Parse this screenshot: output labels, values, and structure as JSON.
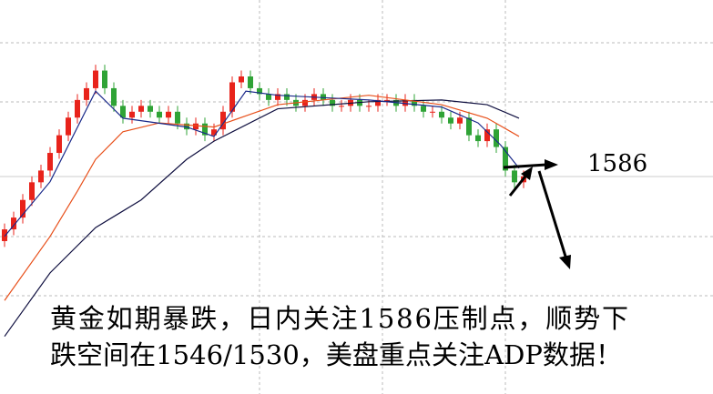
{
  "chart_data": {
    "type": "candlestick",
    "open": [
      1573,
      1575,
      1577,
      1580,
      1583,
      1585,
      1588,
      1591,
      1594,
      1597,
      1599,
      1602,
      1599,
      1596,
      1594,
      1595,
      1596,
      1595,
      1594,
      1595,
      1593,
      1592,
      1593,
      1591,
      1592,
      1595,
      1600,
      1601,
      1599,
      1598,
      1597,
      1598,
      1597,
      1596,
      1597,
      1598,
      1597,
      1596,
      1596,
      1597,
      1596,
      1596,
      1597,
      1597,
      1596,
      1597,
      1596,
      1595,
      1595,
      1594,
      1593,
      1594,
      1591,
      1590,
      1592,
      1589,
      1585,
      1583
    ],
    "high": [
      1576,
      1578,
      1581,
      1584,
      1586,
      1589,
      1592,
      1595,
      1598,
      1600,
      1603,
      1603,
      1600,
      1597,
      1596,
      1597,
      1597,
      1596,
      1596,
      1596,
      1594,
      1594,
      1594,
      1593,
      1596,
      1601,
      1602,
      1602,
      1600,
      1599,
      1599,
      1599,
      1598,
      1598,
      1599,
      1599,
      1598,
      1597,
      1598,
      1598,
      1597,
      1598,
      1598,
      1598,
      1598,
      1598,
      1597,
      1596,
      1596,
      1595,
      1595,
      1595,
      1592,
      1593,
      1593,
      1590,
      1586,
      1585
    ],
    "low": [
      1572,
      1574,
      1576,
      1579,
      1582,
      1584,
      1587,
      1590,
      1593,
      1596,
      1598,
      1598,
      1595,
      1593,
      1593,
      1594,
      1594,
      1593,
      1593,
      1592,
      1591,
      1591,
      1590,
      1590,
      1591,
      1594,
      1599,
      1598,
      1597,
      1596,
      1596,
      1596,
      1595,
      1595,
      1596,
      1596,
      1595,
      1595,
      1595,
      1595,
      1595,
      1595,
      1596,
      1595,
      1595,
      1595,
      1594,
      1594,
      1593,
      1592,
      1592,
      1590,
      1589,
      1589,
      1588,
      1584,
      1582,
      1582
    ],
    "close": [
      1575,
      1577,
      1580,
      1583,
      1585,
      1588,
      1591,
      1594,
      1597,
      1599,
      1602,
      1599,
      1596,
      1594,
      1595,
      1596,
      1595,
      1594,
      1595,
      1593,
      1592,
      1593,
      1591,
      1592,
      1595,
      1600,
      1601,
      1599,
      1598,
      1597,
      1598,
      1597,
      1596,
      1597,
      1598,
      1597,
      1596,
      1596,
      1597,
      1596,
      1596,
      1597,
      1597,
      1596,
      1597,
      1596,
      1595,
      1595,
      1594,
      1593,
      1594,
      1591,
      1590,
      1592,
      1589,
      1585,
      1583,
      1584
    ],
    "up_color": "#e8231b",
    "down_color": "#2fa336",
    "ylim": [
      1547,
      1614
    ],
    "xlim": [
      -0.5,
      77.8
    ],
    "moving_averages": [
      {
        "color": "#101040",
        "x": [
          0,
          5,
          10,
          15,
          20,
          23,
          30,
          40,
          48,
          53,
          56.5
        ],
        "values": [
          1556.8,
          1567.6,
          1575.3,
          1580.0,
          1586.9,
          1590.0,
          1595.5,
          1596.7,
          1597.0,
          1596.2,
          1593.9
        ]
      },
      {
        "color": "#e8501b",
        "x": [
          0,
          5,
          8,
          10,
          13,
          17,
          23,
          30,
          40,
          48,
          53,
          56.5
        ],
        "values": [
          1562.9,
          1573.8,
          1581.5,
          1586.9,
          1591.6,
          1593.1,
          1592.4,
          1596.2,
          1597.8,
          1596.2,
          1593.9,
          1590.8
        ]
      },
      {
        "color": "#1a2a8a",
        "x": [
          0,
          5,
          10,
          13,
          20,
          23,
          26.5,
          30,
          40,
          48,
          52,
          54.5,
          56.5
        ],
        "values": [
          1573.8,
          1583.1,
          1598.5,
          1593.9,
          1592.4,
          1590.8,
          1598.5,
          1597.8,
          1597.0,
          1595.8,
          1593.1,
          1589.3,
          1585.4
        ]
      }
    ],
    "level": 1586,
    "caption": [
      "黄金如期暴跌，日内关注1586压制点，顺势下",
      "跌空间在1546/1530，美盘重点关注ADP数据！"
    ]
  }
}
